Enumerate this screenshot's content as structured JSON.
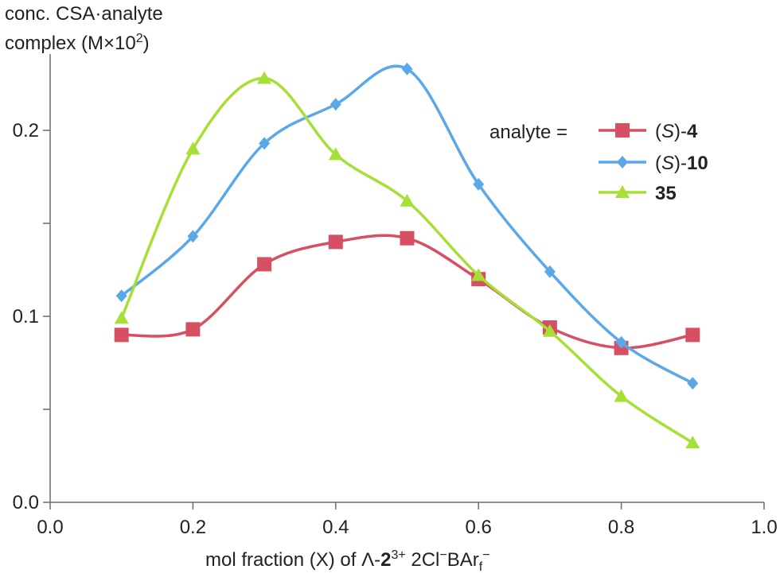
{
  "chart_data": {
    "type": "line",
    "ylabel_lines": [
      "conc. CSA·analyte",
      "complex (M×10",
      "2",
      ")"
    ],
    "xlabel_parts": [
      "mol fraction (X) of ",
      "Λ-",
      "2",
      "3+",
      " 2Cl",
      "−",
      "BAr",
      "f",
      "−"
    ],
    "xlim": [
      0.0,
      1.0
    ],
    "ylim": [
      0.0,
      0.25
    ],
    "x_ticks": [
      "0.0",
      "0.2",
      "0.4",
      "0.6",
      "0.8",
      "1.0"
    ],
    "y_ticks": [
      {
        "value": 0.0,
        "label": "0.0"
      },
      {
        "value": 0.05,
        "label": ""
      },
      {
        "value": 0.1,
        "label": "0.1"
      },
      {
        "value": 0.15,
        "label": ""
      },
      {
        "value": 0.2,
        "label": "0.2"
      }
    ],
    "legend_title": "analyte =",
    "legend_placement": "top-right",
    "grid": false,
    "series": [
      {
        "name": "(S)-4",
        "name_parts": [
          "(",
          "S",
          ")-",
          "4"
        ],
        "color": "#d64f63",
        "marker": "square",
        "x": [
          0.1,
          0.2,
          0.3,
          0.4,
          0.5,
          0.6,
          0.7,
          0.8,
          0.9
        ],
        "y": [
          0.09,
          0.093,
          0.128,
          0.14,
          0.142,
          0.12,
          0.094,
          0.083,
          0.09
        ]
      },
      {
        "name": "(S)-10",
        "name_parts": [
          "(",
          "S",
          ")-",
          "10"
        ],
        "color": "#5ba8e8",
        "marker": "diamond",
        "x": [
          0.1,
          0.2,
          0.3,
          0.4,
          0.5,
          0.6,
          0.7,
          0.8,
          0.9
        ],
        "y": [
          0.111,
          0.143,
          0.193,
          0.214,
          0.233,
          0.171,
          0.124,
          0.086,
          0.064
        ]
      },
      {
        "name": "35",
        "name_parts": [
          "",
          "",
          "",
          "35"
        ],
        "color": "#a6df35",
        "marker": "triangle",
        "x": [
          0.1,
          0.2,
          0.3,
          0.4,
          0.5,
          0.6,
          0.7,
          0.8,
          0.9
        ],
        "y": [
          0.099,
          0.19,
          0.228,
          0.187,
          0.162,
          0.122,
          0.092,
          0.057,
          0.032
        ]
      }
    ]
  }
}
